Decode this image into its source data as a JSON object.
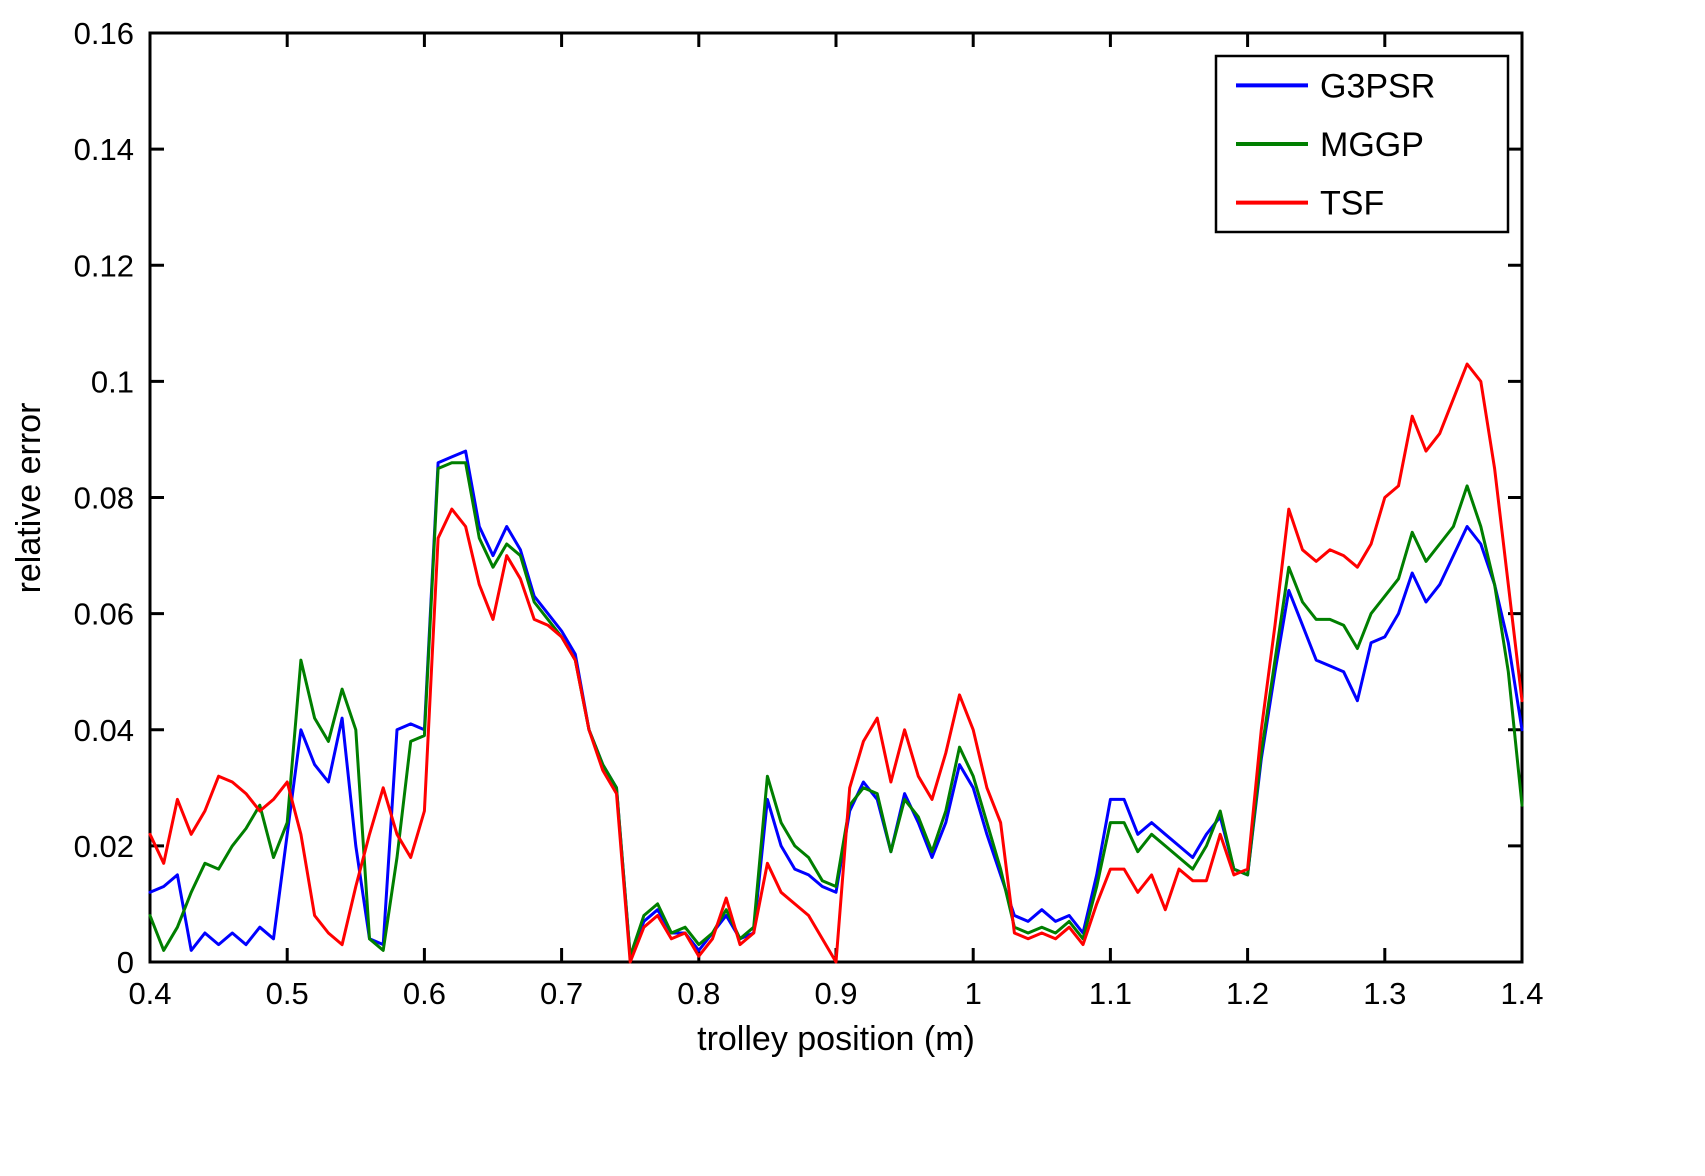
{
  "figure": {
    "background": "#ffffff",
    "axis_color": "#000000"
  },
  "chart_data": {
    "type": "line",
    "title": "",
    "xlabel": "trolley position (m)",
    "ylabel": "relative error",
    "xlim": [
      0.4,
      1.4
    ],
    "ylim": [
      0,
      0.16
    ],
    "grid": false,
    "legend_position": "top-right",
    "xticks": [
      0.4,
      0.5,
      0.6,
      0.7,
      0.8,
      0.9,
      1.0,
      1.1,
      1.2,
      1.3,
      1.4
    ],
    "xtick_labels": [
      "0.4",
      "0.5",
      "0.6",
      "0.7",
      "0.8",
      "0.9",
      "1",
      "1.1",
      "1.2",
      "1.3",
      "1.4"
    ],
    "yticks": [
      0,
      0.02,
      0.04,
      0.06,
      0.08,
      0.1,
      0.12,
      0.14,
      0.16
    ],
    "ytick_labels": [
      "0",
      "0.02",
      "0.04",
      "0.06",
      "0.08",
      "0.1",
      "0.12",
      "0.14",
      "0.16"
    ],
    "x_start": 0.4,
    "x_step": 0.01,
    "series": [
      {
        "name": "G3PSR",
        "color": "#0000ff",
        "values": [
          0.012,
          0.013,
          0.015,
          0.002,
          0.005,
          0.003,
          0.005,
          0.003,
          0.006,
          0.004,
          0.022,
          0.04,
          0.034,
          0.031,
          0.042,
          0.02,
          0.004,
          0.003,
          0.04,
          0.041,
          0.04,
          0.086,
          0.087,
          0.088,
          0.075,
          0.07,
          0.075,
          0.071,
          0.063,
          0.06,
          0.057,
          0.053,
          0.04,
          0.034,
          0.03,
          0.001,
          0.007,
          0.009,
          0.005,
          0.005,
          0.002,
          0.005,
          0.008,
          0.004,
          0.005,
          0.028,
          0.02,
          0.016,
          0.015,
          0.013,
          0.012,
          0.026,
          0.031,
          0.028,
          0.019,
          0.029,
          0.024,
          0.018,
          0.024,
          0.034,
          0.03,
          0.022,
          0.015,
          0.008,
          0.007,
          0.009,
          0.007,
          0.008,
          0.005,
          0.015,
          0.028,
          0.028,
          0.022,
          0.024,
          0.022,
          0.02,
          0.018,
          0.022,
          0.025,
          0.016,
          0.015,
          0.035,
          0.05,
          0.064,
          0.058,
          0.052,
          0.051,
          0.05,
          0.045,
          0.055,
          0.056,
          0.06,
          0.067,
          0.062,
          0.065,
          0.07,
          0.075,
          0.072,
          0.065,
          0.055,
          0.04
        ]
      },
      {
        "name": "MGGP",
        "color": "#007f00",
        "values": [
          0.008,
          0.002,
          0.006,
          0.012,
          0.017,
          0.016,
          0.02,
          0.023,
          0.027,
          0.018,
          0.024,
          0.052,
          0.042,
          0.038,
          0.047,
          0.04,
          0.004,
          0.002,
          0.018,
          0.038,
          0.039,
          0.085,
          0.086,
          0.086,
          0.073,
          0.068,
          0.072,
          0.07,
          0.062,
          0.059,
          0.056,
          0.052,
          0.04,
          0.034,
          0.03,
          0.001,
          0.008,
          0.01,
          0.005,
          0.006,
          0.003,
          0.005,
          0.009,
          0.004,
          0.006,
          0.032,
          0.024,
          0.02,
          0.018,
          0.014,
          0.013,
          0.027,
          0.03,
          0.029,
          0.019,
          0.028,
          0.025,
          0.019,
          0.026,
          0.037,
          0.032,
          0.024,
          0.016,
          0.006,
          0.005,
          0.006,
          0.005,
          0.007,
          0.004,
          0.013,
          0.024,
          0.024,
          0.019,
          0.022,
          0.02,
          0.018,
          0.016,
          0.02,
          0.026,
          0.016,
          0.015,
          0.036,
          0.052,
          0.068,
          0.062,
          0.059,
          0.059,
          0.058,
          0.054,
          0.06,
          0.063,
          0.066,
          0.074,
          0.069,
          0.072,
          0.075,
          0.082,
          0.075,
          0.065,
          0.05,
          0.027
        ]
      },
      {
        "name": "TSF",
        "color": "#ff0000",
        "values": [
          0.022,
          0.017,
          0.028,
          0.022,
          0.026,
          0.032,
          0.031,
          0.029,
          0.026,
          0.028,
          0.031,
          0.022,
          0.008,
          0.005,
          0.003,
          0.013,
          0.022,
          0.03,
          0.022,
          0.018,
          0.026,
          0.073,
          0.078,
          0.075,
          0.065,
          0.059,
          0.07,
          0.066,
          0.059,
          0.058,
          0.056,
          0.052,
          0.04,
          0.033,
          0.029,
          0.0,
          0.006,
          0.008,
          0.004,
          0.005,
          0.001,
          0.004,
          0.011,
          0.003,
          0.005,
          0.017,
          0.012,
          0.01,
          0.008,
          0.004,
          0.0,
          0.03,
          0.038,
          0.042,
          0.031,
          0.04,
          0.032,
          0.028,
          0.036,
          0.046,
          0.04,
          0.03,
          0.024,
          0.005,
          0.004,
          0.005,
          0.004,
          0.006,
          0.003,
          0.01,
          0.016,
          0.016,
          0.012,
          0.015,
          0.009,
          0.016,
          0.014,
          0.014,
          0.022,
          0.015,
          0.016,
          0.04,
          0.058,
          0.078,
          0.071,
          0.069,
          0.071,
          0.07,
          0.068,
          0.072,
          0.08,
          0.082,
          0.094,
          0.088,
          0.091,
          0.097,
          0.103,
          0.1,
          0.085,
          0.065,
          0.045
        ]
      }
    ]
  }
}
